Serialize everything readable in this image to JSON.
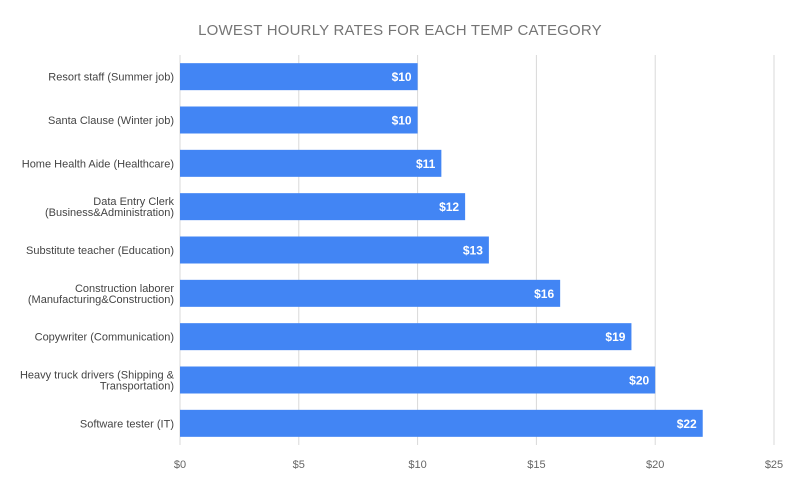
{
  "chart_data": {
    "type": "bar",
    "orientation": "horizontal",
    "title": "LOWEST HOURLY RATES FOR EACH TEMP CATEGORY",
    "categories": [
      [
        "Resort staff (Summer job)"
      ],
      [
        "Santa Clause (Winter job)"
      ],
      [
        "Home Health Aide (Healthcare)"
      ],
      [
        "Data Entry Clerk",
        "(Business&Administration)"
      ],
      [
        "Substitute teacher (Education)"
      ],
      [
        "Construction laborer",
        "(Manufacturing&Construction)"
      ],
      [
        "Copywriter (Communication)"
      ],
      [
        "Heavy truck drivers (Shipping &",
        "Transportation)"
      ],
      [
        "Software tester (IT)"
      ]
    ],
    "values": [
      10,
      10,
      11,
      12,
      13,
      16,
      19,
      20,
      22
    ],
    "data_labels": [
      "$10",
      "$10",
      "$11",
      "$12",
      "$13",
      "$16",
      "$19",
      "$20",
      "$22"
    ],
    "xlim": [
      0,
      25
    ],
    "x_ticks": [
      0,
      5,
      10,
      15,
      20,
      25
    ],
    "x_tick_labels": [
      "$0",
      "$5",
      "$10",
      "$15",
      "$20",
      "$25"
    ],
    "grid": true,
    "bar_color": "#4285F4",
    "grid_color": "#d9d9d9"
  }
}
